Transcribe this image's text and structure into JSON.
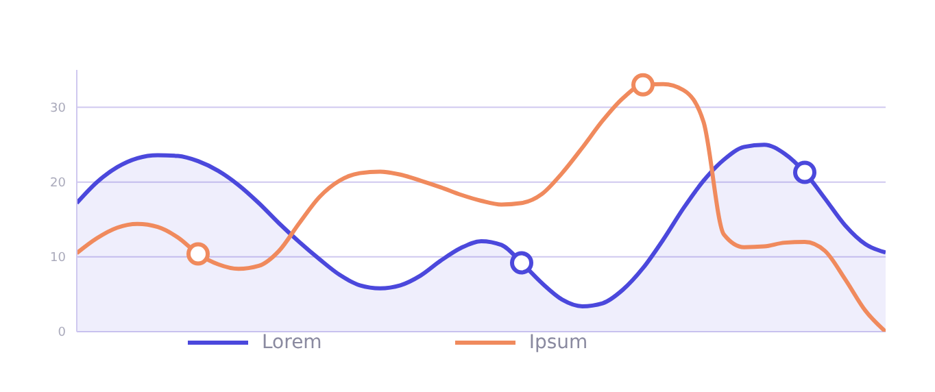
{
  "chart_data": {
    "type": "line",
    "categories": [
      null,
      null,
      null,
      null,
      null,
      null,
      null,
      null,
      null,
      null,
      null,
      null,
      null,
      null,
      null,
      null,
      null,
      null,
      null,
      null,
      null,
      null,
      null,
      null,
      null,
      null,
      null,
      null,
      null,
      null,
      null,
      null,
      null,
      null,
      null,
      null,
      null,
      null,
      null,
      null,
      null
    ],
    "series": [
      {
        "name": "Lorem",
        "type": "area",
        "color": "#4b48dc",
        "values": [
          17.2,
          20,
          22,
          23.2,
          23.6,
          23.5,
          22.8,
          21.5,
          19.6,
          17.2,
          14.5,
          12,
          9.7,
          7.6,
          6.2,
          5.8,
          6.2,
          7.5,
          9.5,
          11.2,
          12.1,
          11.6,
          9.2,
          6.5,
          4.3,
          3.4,
          3.8,
          5.6,
          8.5,
          12.3,
          16.5,
          20.2,
          23,
          24.7,
          25,
          23.8,
          21.3,
          17.8,
          14.2,
          11.7,
          10.6
        ]
      },
      {
        "name": "Ipsum",
        "color": "#f08a5d",
        "values": [
          10.5,
          12.5,
          13.9,
          14.4,
          14,
          12.6,
          10.4,
          9,
          8.4,
          8.8,
          10.8,
          14.5,
          18,
          20.2,
          21.2,
          21.4,
          21,
          20.2,
          19.3,
          18.3,
          17.5,
          17,
          17.2,
          18.4,
          21.2,
          24.6,
          28.2,
          31.2,
          33,
          33.1,
          32.3,
          28,
          13,
          11.3,
          11.4,
          11.9,
          12,
          10.8,
          7,
          2.8,
          0
        ]
      },
      {
        "type": "scatter",
        "marker": "circle",
        "color": "#4b48dc",
        "values": [
          null,
          null,
          null,
          null,
          null,
          null,
          null,
          null,
          null,
          null,
          null,
          null,
          null,
          null,
          null,
          null,
          null,
          null,
          null,
          null,
          null,
          null,
          9.2,
          null,
          null,
          null,
          null,
          null,
          null,
          null,
          null,
          null,
          null,
          null,
          null,
          null,
          21.3,
          null,
          null,
          null,
          null
        ]
      },
      {
        "type": "scatter",
        "marker": "circle",
        "color": "#f08a5d",
        "values": [
          null,
          null,
          null,
          null,
          null,
          null,
          10.4,
          null,
          null,
          null,
          null,
          null,
          null,
          null,
          null,
          null,
          null,
          null,
          null,
          null,
          null,
          null,
          null,
          null,
          null,
          null,
          null,
          null,
          33,
          null,
          null,
          null,
          null,
          null,
          null,
          null,
          null,
          null,
          null,
          null,
          null
        ]
      }
    ],
    "ylim": [
      0,
      35
    ],
    "yticks": [
      0,
      10,
      20,
      30
    ],
    "grid": "y",
    "legend": "bottom",
    "marker": "none",
    "line_style": "solid"
  }
}
